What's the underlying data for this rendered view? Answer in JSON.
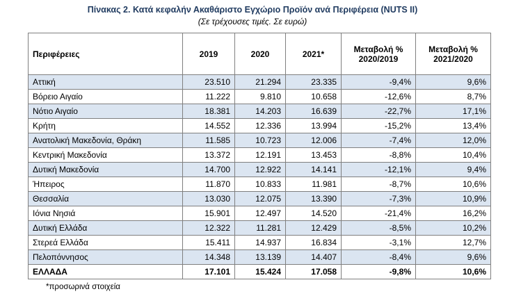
{
  "title": "Πίνακας 2. Κατά κεφαλήν Ακαθάριστο Εγχώριο Προϊόν ανά Περιφέρεια (NUTS II)",
  "subtitle": "(Σε τρέχουσες τιμές. Σε ευρώ)",
  "table": {
    "header": [
      [
        "Περιφέρειες"
      ],
      [
        "2019"
      ],
      [
        "2020"
      ],
      [
        "2021*"
      ],
      [
        "Μεταβολή %",
        "2020/2019"
      ],
      [
        "Μεταβολή %",
        "2021/2020"
      ]
    ],
    "rows": [
      [
        "Αττική",
        "23.510",
        "21.294",
        "23.335",
        "-9,4%",
        "9,6%"
      ],
      [
        "Βόρειο Αιγαίο",
        "11.222",
        "9.810",
        "10.658",
        "-12,6%",
        "8,7%"
      ],
      [
        "Νότιο Αιγαίο",
        "18.381",
        "14.203",
        "16.639",
        "-22,7%",
        "17,1%"
      ],
      [
        "Κρήτη",
        "14.552",
        "12.336",
        "13.994",
        "-15,2%",
        "13,4%"
      ],
      [
        "Ανατολική Μακεδονία, Θράκη",
        "11.585",
        "10.723",
        "12.006",
        "-7,4%",
        "12,0%"
      ],
      [
        "Κεντρική Μακεδονία",
        "13.372",
        "12.191",
        "13.453",
        "-8,8%",
        "10,4%"
      ],
      [
        "Δυτική Μακεδονία",
        "14.700",
        "12.922",
        "14.141",
        "-12,1%",
        "9,4%"
      ],
      [
        "Ήπειρος",
        "11.870",
        "10.833",
        "11.981",
        "-8,7%",
        "10,6%"
      ],
      [
        "Θεσσαλία",
        "13.030",
        "12.075",
        "13.390",
        "-7,3%",
        "10,9%"
      ],
      [
        "Ιόνια Νησιά",
        "15.901",
        "12.497",
        "14.520",
        "-21,4%",
        "16,2%"
      ],
      [
        "Δυτική Ελλάδα",
        "12.322",
        "11.281",
        "12.429",
        "-8,5%",
        "10,2%"
      ],
      [
        "Στερεά Ελλάδα",
        "15.411",
        "14.937",
        "16.834",
        "-3,1%",
        "12,7%"
      ],
      [
        "Πελοπόννησος",
        "14.348",
        "13.139",
        "14.407",
        "-8,4%",
        "9,6%"
      ]
    ],
    "total": [
      "ΕΛΛΑΔΑ",
      "17.101",
      "15.424",
      "17.058",
      "-9,8%",
      "10,6%"
    ]
  },
  "footnote": "*προσωρινά στοιχεία"
}
